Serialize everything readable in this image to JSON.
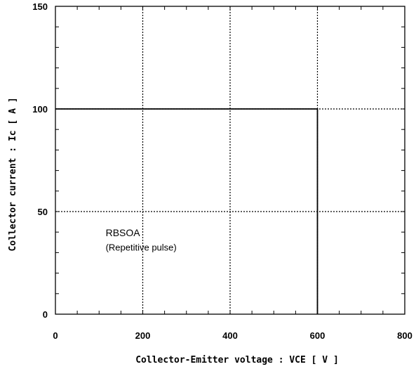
{
  "chart_data": {
    "type": "line",
    "title": "",
    "xlabel": "Collector-Emitter voltage  :  VCE [ V ]",
    "ylabel": "Collector current : Ic [ A ]",
    "xlim": [
      0,
      800
    ],
    "ylim": [
      0,
      150
    ],
    "xticks": [
      0,
      200,
      400,
      600,
      800
    ],
    "yticks": [
      0,
      50,
      100,
      150
    ],
    "grid": true,
    "series": [
      {
        "x": [
          0,
          600,
          600
        ],
        "y": [
          100,
          100,
          0
        ]
      }
    ],
    "annotations": [
      {
        "text": "RBSOA",
        "x": 115,
        "y": 38
      },
      {
        "text": "(Repetitive pulse)",
        "x": 115,
        "y": 31
      }
    ]
  }
}
